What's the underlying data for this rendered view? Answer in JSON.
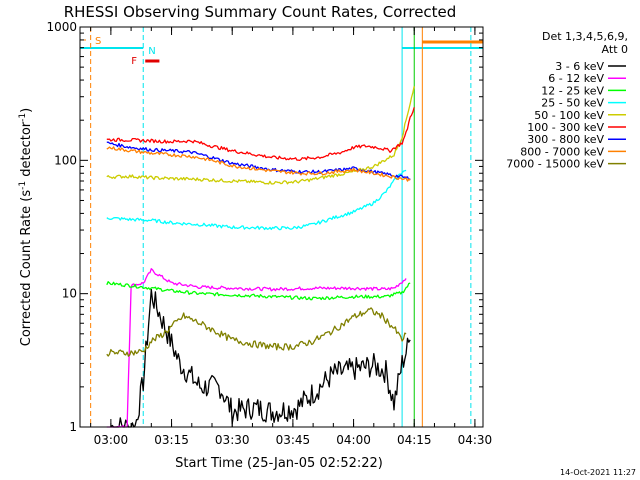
{
  "chart_data": {
    "type": "line",
    "title": "RHESSI Observing Summary Count Rates, Corrected",
    "xlabel": "Start Time (25-Jan-05 02:52:22)",
    "ylabel_main": "Corrected Count Rate (s",
    "ylabel_sup1": "-1",
    "ylabel_mid": " detector",
    "ylabel_sup2": "-1",
    "ylabel_end": ")",
    "yscale": "log",
    "ylim": [
      1,
      1000
    ],
    "xlim": [
      "02:52:22",
      "04:32:00"
    ],
    "x_ticks": [
      "03:00",
      "03:15",
      "03:30",
      "03:45",
      "04:00",
      "04:15",
      "04:30"
    ],
    "y_ticks": [
      "1",
      "10",
      "100",
      "1000"
    ],
    "legend_header": [
      "Det 1,3,4,5,6,9,",
      "Att 0"
    ],
    "legend_position": "right",
    "grid": false,
    "flags": {
      "saa": {
        "label": "S",
        "color": "#ff8000"
      },
      "night": {
        "label": "N",
        "color": "#00e5ee"
      },
      "flare": {
        "label": "F",
        "color": "#e00000"
      }
    },
    "vertical_markers": [
      {
        "time": "02:55",
        "color": "#ff8000",
        "style": "dashed"
      },
      {
        "time": "03:08",
        "color": "#00e5ee",
        "style": "dashed"
      },
      {
        "time": "04:12",
        "color": "#00e5ee",
        "style": "solid"
      },
      {
        "time": "04:15",
        "color": "#00cc00",
        "style": "solid"
      },
      {
        "time": "04:17",
        "color": "#ff8000",
        "style": "solid"
      },
      {
        "time": "04:29",
        "color": "#00e5ee",
        "style": "dashed"
      }
    ],
    "series": [
      {
        "name": "3 - 6 keV",
        "color": "#000000",
        "points": [
          [
            "03:00",
            1
          ],
          [
            "03:06",
            1
          ],
          [
            "03:08",
            2.2
          ],
          [
            "03:10",
            10
          ],
          [
            "03:13",
            6
          ],
          [
            "03:17",
            3
          ],
          [
            "03:22",
            2
          ],
          [
            "03:27",
            2
          ],
          [
            "03:30",
            1.3
          ],
          [
            "03:35",
            1.4
          ],
          [
            "03:40",
            1.3
          ],
          [
            "03:46",
            1.4
          ],
          [
            "03:50",
            1.8
          ],
          [
            "03:55",
            2.5
          ],
          [
            "04:00",
            2.7
          ],
          [
            "04:05",
            2.9
          ],
          [
            "04:08",
            2.6
          ],
          [
            "04:10",
            1.5
          ],
          [
            "04:12",
            3
          ],
          [
            "04:14",
            4.5
          ]
        ]
      },
      {
        "name": "6 - 12 keV",
        "color": "#ff00ff",
        "points": [
          [
            "02:59",
            1
          ],
          [
            "03:04",
            1
          ],
          [
            "03:05",
            11.5
          ],
          [
            "03:08",
            12
          ],
          [
            "03:10",
            15
          ],
          [
            "03:15",
            12
          ],
          [
            "03:22",
            11.2
          ],
          [
            "03:30",
            11
          ],
          [
            "03:40",
            10.8
          ],
          [
            "03:50",
            11
          ],
          [
            "04:00",
            11
          ],
          [
            "04:08",
            10.8
          ],
          [
            "04:10",
            11
          ],
          [
            "04:13",
            13
          ]
        ]
      },
      {
        "name": "12 - 25 keV",
        "color": "#00ff00",
        "points": [
          [
            "02:59",
            12
          ],
          [
            "03:05",
            11.5
          ],
          [
            "03:10",
            11
          ],
          [
            "03:15",
            10.5
          ],
          [
            "03:22",
            10
          ],
          [
            "03:30",
            9.8
          ],
          [
            "03:40",
            9.5
          ],
          [
            "03:50",
            9.2
          ],
          [
            "04:00",
            9.5
          ],
          [
            "04:08",
            9.5
          ],
          [
            "04:12",
            10.2
          ],
          [
            "04:14",
            12
          ]
        ]
      },
      {
        "name": "25 - 50 keV",
        "color": "#00ffff",
        "points": [
          [
            "02:59",
            37
          ],
          [
            "03:05",
            36
          ],
          [
            "03:10",
            35.5
          ],
          [
            "03:15",
            34
          ],
          [
            "03:22",
            33
          ],
          [
            "03:30",
            31.5
          ],
          [
            "03:40",
            31
          ],
          [
            "03:45",
            31
          ],
          [
            "03:50",
            33
          ],
          [
            "03:55",
            37
          ],
          [
            "04:00",
            41
          ],
          [
            "04:05",
            48
          ],
          [
            "04:08",
            58
          ],
          [
            "04:10",
            70
          ],
          [
            "04:12",
            82
          ],
          [
            "04:13",
            84
          ]
        ]
      },
      {
        "name": "50 - 100 keV",
        "color": "#cccc00",
        "points": [
          [
            "02:59",
            75
          ],
          [
            "03:05",
            76
          ],
          [
            "03:10",
            74
          ],
          [
            "03:15",
            73
          ],
          [
            "03:22",
            72
          ],
          [
            "03:30",
            70
          ],
          [
            "03:40",
            68
          ],
          [
            "03:46",
            69
          ],
          [
            "03:50",
            72
          ],
          [
            "03:55",
            77
          ],
          [
            "04:00",
            82
          ],
          [
            "04:05",
            90
          ],
          [
            "04:10",
            110
          ],
          [
            "04:12",
            150
          ],
          [
            "04:13",
            200
          ],
          [
            "04:14",
            270
          ],
          [
            "04:15",
            360
          ]
        ]
      },
      {
        "name": "100 - 300 keV",
        "color": "#ff0000",
        "points": [
          [
            "02:59",
            143
          ],
          [
            "03:05",
            142
          ],
          [
            "03:10",
            140
          ],
          [
            "03:15",
            138
          ],
          [
            "03:20",
            140
          ],
          [
            "03:25",
            128
          ],
          [
            "03:30",
            118
          ],
          [
            "03:40",
            105
          ],
          [
            "03:47",
            102
          ],
          [
            "03:52",
            106
          ],
          [
            "03:57",
            115
          ],
          [
            "04:00",
            125
          ],
          [
            "04:03",
            128
          ],
          [
            "04:06",
            125
          ],
          [
            "04:09",
            118
          ],
          [
            "04:12",
            135
          ],
          [
            "04:13",
            160
          ],
          [
            "04:14",
            210
          ],
          [
            "04:15",
            250
          ]
        ]
      },
      {
        "name": "300 - 800 keV",
        "color": "#0000ff",
        "points": [
          [
            "02:59",
            135
          ],
          [
            "03:05",
            125
          ],
          [
            "03:10",
            120
          ],
          [
            "03:15",
            118
          ],
          [
            "03:20",
            115
          ],
          [
            "03:25",
            105
          ],
          [
            "03:30",
            95
          ],
          [
            "03:40",
            85
          ],
          [
            "03:47",
            82
          ],
          [
            "03:52",
            82
          ],
          [
            "03:57",
            85
          ],
          [
            "04:00",
            87
          ],
          [
            "04:05",
            82
          ],
          [
            "04:09",
            78
          ],
          [
            "04:12",
            75
          ],
          [
            "04:14",
            73
          ]
        ]
      },
      {
        "name": "800 - 7000 keV",
        "color": "#ff8000",
        "points": [
          [
            "02:59",
            125
          ],
          [
            "03:05",
            118
          ],
          [
            "03:10",
            113
          ],
          [
            "03:15",
            110
          ],
          [
            "03:20",
            107
          ],
          [
            "03:25",
            100
          ],
          [
            "03:30",
            91
          ],
          [
            "03:40",
            83
          ],
          [
            "03:47",
            80
          ],
          [
            "03:52",
            80
          ],
          [
            "03:57",
            83
          ],
          [
            "04:00",
            85
          ],
          [
            "04:05",
            80
          ],
          [
            "04:09",
            76
          ],
          [
            "04:12",
            73
          ],
          [
            "04:14",
            71
          ]
        ]
      },
      {
        "name": "7000 - 15000 keV",
        "color": "#808000",
        "points": [
          [
            "02:59",
            3.6
          ],
          [
            "03:05",
            3.6
          ],
          [
            "03:08",
            3.7
          ],
          [
            "03:10",
            4.4
          ],
          [
            "03:13",
            5
          ],
          [
            "03:18",
            6.8
          ],
          [
            "03:22",
            6
          ],
          [
            "03:27",
            5
          ],
          [
            "03:30",
            4.5
          ],
          [
            "03:35",
            4.2
          ],
          [
            "03:40",
            4
          ],
          [
            "03:45",
            4
          ],
          [
            "03:50",
            4.4
          ],
          [
            "03:55",
            5.3
          ],
          [
            "04:00",
            6.7
          ],
          [
            "04:04",
            7.5
          ],
          [
            "04:07",
            6.8
          ],
          [
            "04:10",
            5.5
          ],
          [
            "04:12",
            4.5
          ],
          [
            "04:13",
            5
          ]
        ]
      }
    ],
    "footer_timestamp": "14-Oct-2021 11:27"
  }
}
